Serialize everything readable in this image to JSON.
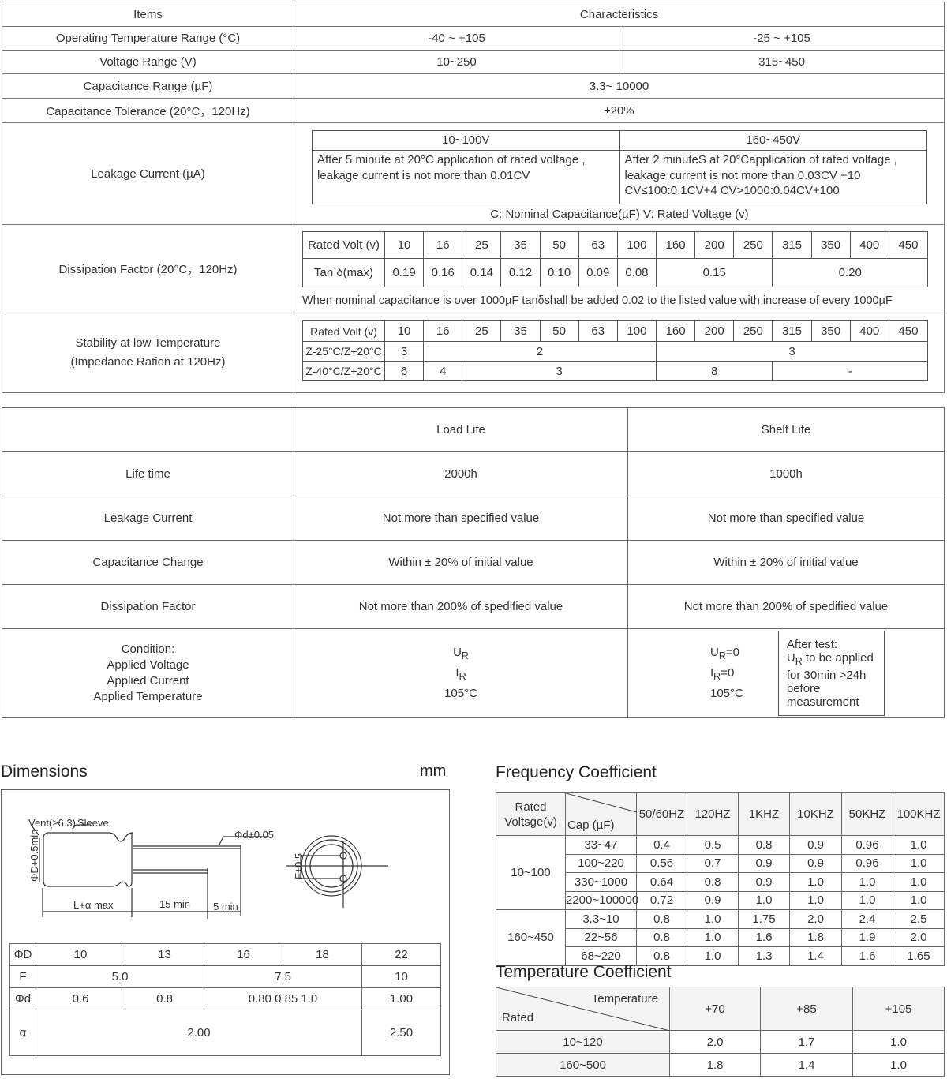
{
  "characteristics": {
    "header_items": "Items",
    "header_characteristics": "Characteristics",
    "operating_temp": {
      "label": "Operating Temperature Range (°C)",
      "low_voltage": "-40 ~ +105",
      "high_voltage": "-25 ~ +105"
    },
    "voltage_range": {
      "label": "Voltage Range (V)",
      "low_voltage": "10~250",
      "high_voltage": "315~450"
    },
    "capacitance_range": {
      "label": "Capacitance Range (µF)",
      "value": "3.3~ 10000"
    },
    "capacitance_tolerance": {
      "label": "Capacitance Tolerance (20°C，120Hz)",
      "value": "±20%"
    },
    "leakage_current": {
      "label": "Leakage Current (µA)",
      "col1_header": "10~100V",
      "col2_header": "160~450V",
      "col1_text1": "After 5 minute at 20°C application of rated voltage ,",
      "col1_text2": "leakage current  is not more than 0.01CV",
      "col2_text1": "After 2 minuteS at 20°Capplication of rated voltage ,",
      "col2_text2": "leakage current  is not more than 0.03CV +10",
      "col2_text3": "CV≤100:0.1CV+4      CV>1000:0.04CV+100",
      "note": "C:  Nominal Capacitance(µF)  V:  Rated Voltage (v)"
    },
    "dissipation_factor": {
      "label": "Dissipation Factor (20°C，120Hz)",
      "rows": [
        [
          {
            "t": "Rated Volt (v)"
          },
          {
            "t": "10"
          },
          {
            "t": "16"
          },
          {
            "t": "25"
          },
          {
            "t": "35"
          },
          {
            "t": "50"
          },
          {
            "t": "63"
          },
          {
            "t": "100"
          },
          {
            "t": "160"
          },
          {
            "t": "200"
          },
          {
            "t": "250"
          },
          {
            "t": "315"
          },
          {
            "t": "350"
          },
          {
            "t": "400"
          },
          {
            "t": "450"
          }
        ],
        [
          {
            "t": "Tan δ(max)"
          },
          {
            "t": "0.19"
          },
          {
            "t": "0.16"
          },
          {
            "t": "0.14"
          },
          {
            "t": "0.12"
          },
          {
            "t": "0.10"
          },
          {
            "t": "0.09"
          },
          {
            "t": "0.08"
          },
          {
            "t": "0.15",
            "cs": 3
          },
          {
            "t": "0.20",
            "cs": 4
          }
        ]
      ],
      "note": "When nominal capacitance is over 1000µF tanδshall be added 0.02 to the listed value with increase of every 1000µF"
    },
    "stability": {
      "label_line1": "Stability at low Temperature",
      "label_line2": "(Impedance Ration at 120Hz)",
      "rows": [
        [
          {
            "t": "Rated Volt (v)"
          },
          {
            "t": "10"
          },
          {
            "t": "16"
          },
          {
            "t": "25"
          },
          {
            "t": "35"
          },
          {
            "t": "50"
          },
          {
            "t": "63"
          },
          {
            "t": "100"
          },
          {
            "t": "160"
          },
          {
            "t": "200"
          },
          {
            "t": "250"
          },
          {
            "t": "315"
          },
          {
            "t": "350"
          },
          {
            "t": "400"
          },
          {
            "t": "450"
          }
        ],
        [
          {
            "t": "Z-25°C/Z+20°C"
          },
          {
            "t": "3"
          },
          {
            "t": "2",
            "cs": 6
          },
          {
            "t": "3",
            "cs": 7
          }
        ],
        [
          {
            "t": "Z-40°C/Z+20°C"
          },
          {
            "t": "6"
          },
          {
            "t": "4"
          },
          {
            "t": "3",
            "cs": 5
          },
          {
            "t": "8",
            "cs": 3
          },
          {
            "t": "-",
            "cs": 4
          }
        ]
      ]
    }
  },
  "life_test": {
    "header_load": "Load Life",
    "header_shelf": "Shelf  Life",
    "rows": [
      {
        "label": "Life time",
        "load": "2000h",
        "shelf": "1000h"
      },
      {
        "label": "Leakage Current",
        "load": "Not more than specified value",
        "shelf": "Not more than specified value"
      },
      {
        "label": "Capacitance Change",
        "load": "Within ± 20% of initial value",
        "shelf": "Within ± 20% of initial value"
      },
      {
        "label": "Dissipation Factor",
        "load": "Not more than 200% of  spedified value",
        "shelf": "Not more than 200% of  spedified value"
      }
    ],
    "condition": {
      "label1": "Condition:",
      "label2": "Applied Voltage",
      "label3": "Applied Current",
      "label4": "Applied Temperature",
      "load_voltage": "U",
      "load_voltage_sub": "R",
      "load_current": "I",
      "load_current_sub": "R",
      "load_temp": "105°C",
      "shelf_voltage": "U",
      "shelf_voltage_sub": "R",
      "shelf_voltage_val": "=0",
      "shelf_current": "I",
      "shelf_current_sub": "R",
      "shelf_current_val": "=0",
      "shelf_temp": "105°C",
      "after_test1": "After test:",
      "after_test2_u": "U",
      "after_test2_sub": "R",
      "after_test2": " to be applied",
      "after_test3": "for 30min >24h",
      "after_test4": "before",
      "after_test5": "measurement"
    }
  },
  "dimensions": {
    "title": "Dimensions",
    "unit": "mm",
    "drawing_labels": {
      "vent": "Vent(≥6.3)",
      "sleeve": "Sleeve",
      "lead_dia": "Φd±0.05",
      "body_dia": "ΦD+0.5min",
      "length": "L+α  max",
      "lead1": "15 min",
      "lead2": "5 min",
      "pitch": "F±0.5"
    },
    "rows": [
      [
        {
          "t": "ΦD"
        },
        {
          "t": "10"
        },
        {
          "t": "13"
        },
        {
          "t": "16"
        },
        {
          "t": "18"
        },
        {
          "t": "22"
        }
      ],
      [
        {
          "t": "F"
        },
        {
          "t": "5.0",
          "cs": 2
        },
        {
          "t": "7.5",
          "cs": 2
        },
        {
          "t": "10"
        }
      ],
      [
        {
          "t": "Φd"
        },
        {
          "t": "0.6"
        },
        {
          "t": "0.8"
        },
        {
          "t": "0.80      0.85      1.0",
          "cs": 2
        },
        {
          "t": "1.00"
        }
      ],
      [
        {
          "t": "α"
        },
        {
          "t": "2.00",
          "cs": 4
        },
        {
          "t": "2.50"
        }
      ]
    ]
  },
  "frequency_coefficient": {
    "title": "Frequency Coefficient",
    "header_rated": "Rated Voltsge(v)",
    "header_cap": "Cap (µF)",
    "freqs": [
      "50/60HZ",
      "120HZ",
      "1KHZ",
      "10KHZ",
      "50KHZ",
      "100KHZ"
    ],
    "groups": [
      {
        "voltage": "10~100",
        "rows": [
          {
            "cap": "33~47",
            "v": [
              "0.4",
              "0.5",
              "0.8",
              "0.9",
              "0.96",
              "1.0"
            ]
          },
          {
            "cap": "100~220",
            "v": [
              "0.56",
              "0.7",
              "0.9",
              "0.9",
              "0.96",
              "1.0"
            ]
          },
          {
            "cap": "330~1000",
            "v": [
              "0.64",
              "0.8",
              "0.9",
              "1.0",
              "1.0",
              "1.0"
            ]
          },
          {
            "cap": "2200~100000",
            "v": [
              "0.72",
              "0.9",
              "1.0",
              "1.0",
              "1.0",
              "1.0"
            ]
          }
        ]
      },
      {
        "voltage": "160~450",
        "rows": [
          {
            "cap": "3.3~10",
            "v": [
              "0.8",
              "1.0",
              "1.75",
              "2.0",
              "2.4",
              "2.5"
            ]
          },
          {
            "cap": "22~56",
            "v": [
              "0.8",
              "1.0",
              "1.6",
              "1.8",
              "1.9",
              "2.0"
            ]
          },
          {
            "cap": "68~220",
            "v": [
              "0.8",
              "1.0",
              "1.3",
              "1.4",
              "1.6",
              "1.65"
            ]
          }
        ]
      }
    ]
  },
  "temperature_coefficient": {
    "title": "Temperature Coefficient",
    "header_temperature": "Temperature",
    "header_rated": "Rated",
    "temps": [
      "+70",
      "+85",
      "+105"
    ],
    "rows": [
      {
        "rated": "10~120",
        "v": [
          "2.0",
          "1.7",
          "1.0"
        ]
      },
      {
        "rated": "160~500",
        "v": [
          "1.8",
          "1.4",
          "1.0"
        ]
      }
    ]
  }
}
